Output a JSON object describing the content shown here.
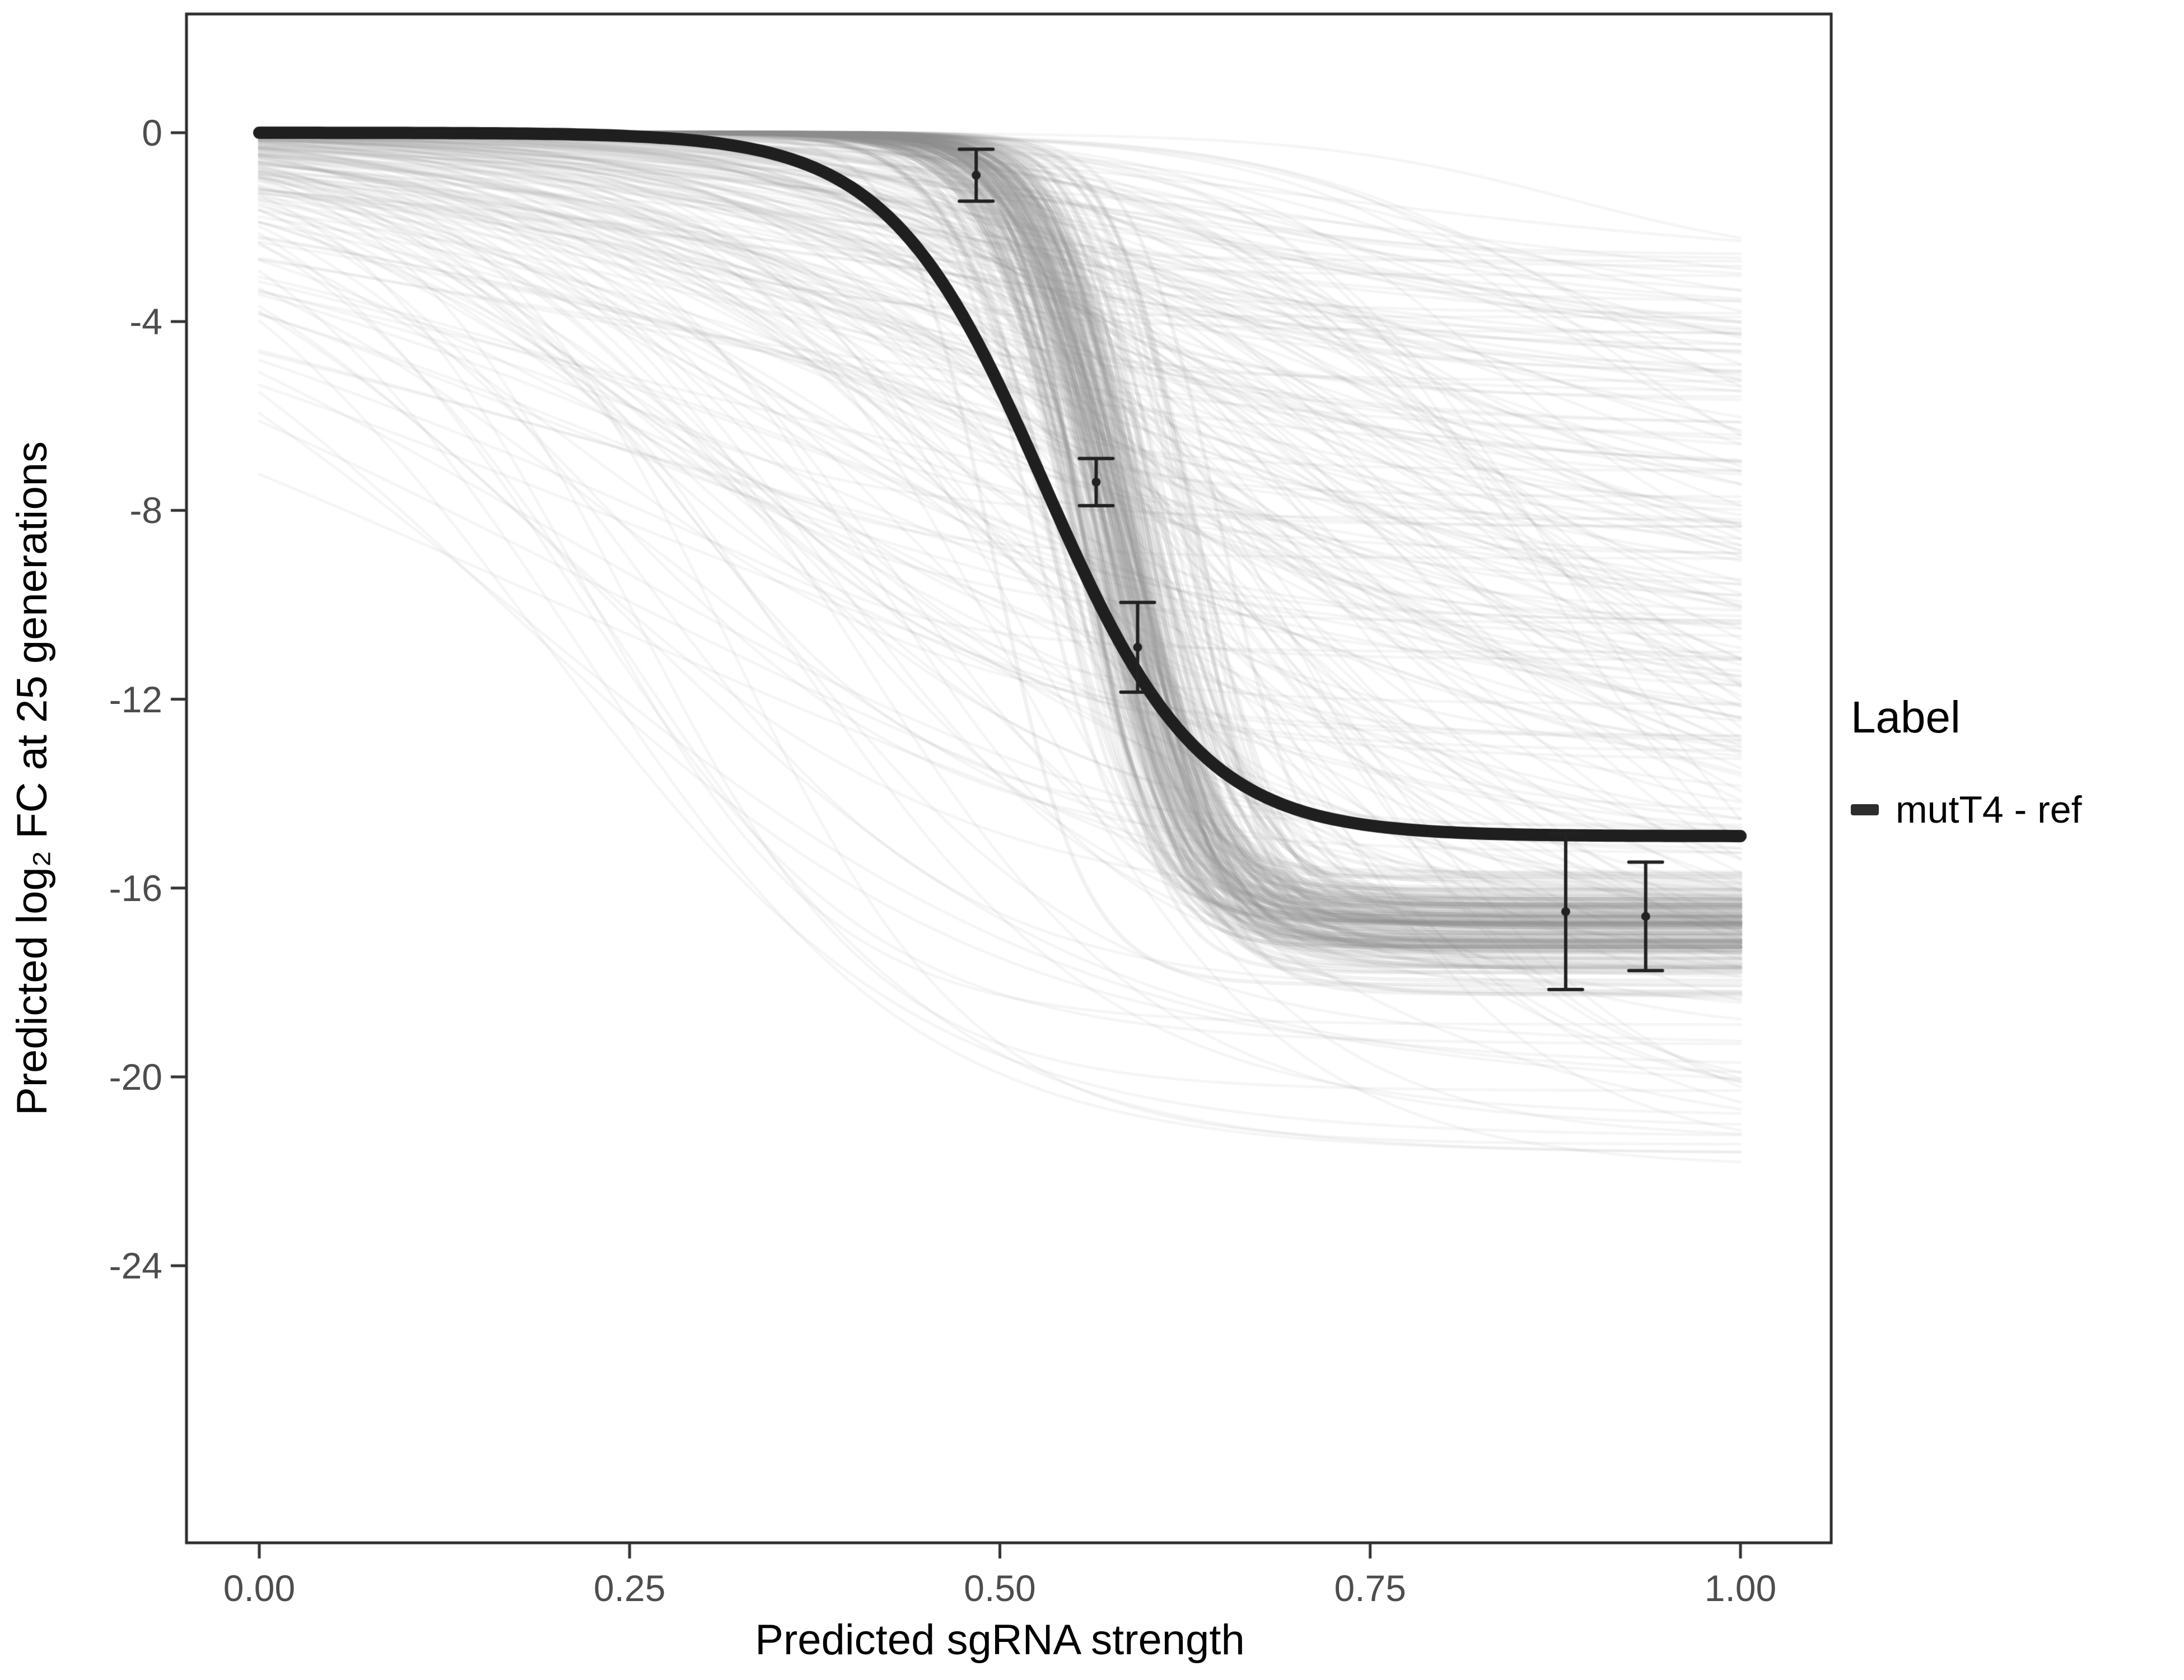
{
  "chart_data": {
    "type": "line",
    "title": "",
    "xlabel": "Predicted sgRNA strength",
    "ylabel": "Predicted log₂ FC at 25 generations",
    "xlim": [
      -0.05,
      1.05
    ],
    "ylim": [
      -29.9,
      2.5
    ],
    "grid": "off",
    "x_ticks": [
      0,
      0.25,
      0.5,
      0.75,
      1
    ],
    "x_tick_labels": [
      "0.00",
      "0.25",
      "0.50",
      "0.75",
      "1.00"
    ],
    "y_ticks": [
      0,
      -4,
      -8,
      -12,
      -16,
      -20,
      -24
    ],
    "y_tick_labels": [
      "0",
      "-4",
      "-8",
      "-12",
      "-16",
      "-20",
      "-24"
    ],
    "legend": {
      "title": "Label",
      "position": "right",
      "entries": [
        {
          "label": "mutT4 - ref",
          "color": "#2d2d2d"
        }
      ]
    },
    "main_curve": {
      "name": "mutT4 - ref",
      "shape": "logistic",
      "upper_asymptote": 0,
      "lower_asymptote": -14.9,
      "midpoint": 0.53,
      "slope": 19,
      "color": "#1f1f1f"
    },
    "posterior_bundle": {
      "count": 150,
      "lower_mean": -16.8,
      "lower_sd": 0.55,
      "midpoint_mean": 0.578,
      "midpoint_sd": 0.022,
      "slope_min": 26,
      "slope_max": 42,
      "color": "#8c8c8c",
      "opacity": 0.12
    },
    "background_curves": {
      "count": 240,
      "lower_min": -22,
      "lower_max": -2.5,
      "midpoint_min": 0.15,
      "midpoint_max": 0.9,
      "slope_min": 2.5,
      "slope_max": 12,
      "color": "#9a9a9a",
      "opacity": 0.1,
      "seed": 42
    },
    "error_points": [
      {
        "x": 0.484,
        "y": -0.9,
        "half_error": 0.55
      },
      {
        "x": 0.565,
        "y": -7.4,
        "half_error": 0.5
      },
      {
        "x": 0.593,
        "y": -10.9,
        "half_error": 0.95
      },
      {
        "x": 0.882,
        "y": -16.5,
        "half_error": 1.65
      },
      {
        "x": 0.936,
        "y": -16.6,
        "half_error": 1.15
      }
    ],
    "error_point_color": "#222222"
  }
}
